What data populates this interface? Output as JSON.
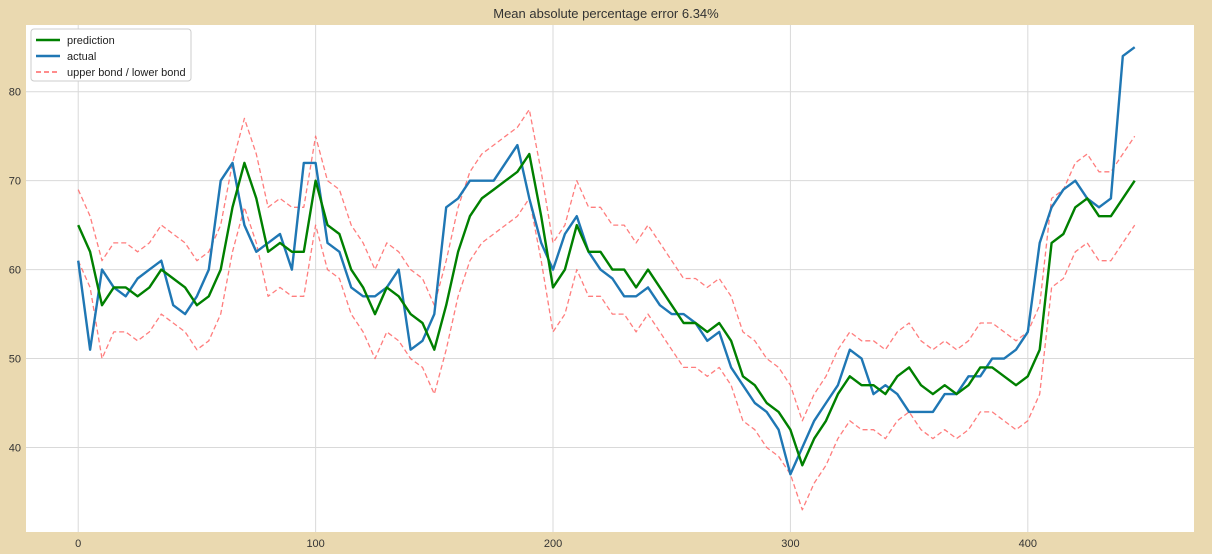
{
  "chart_data": {
    "type": "line",
    "title": "Mean absolute percentage error 6.34%",
    "xlabel": "",
    "ylabel": "",
    "xlim": [
      -22,
      470
    ],
    "ylim": [
      30.5,
      87.5
    ],
    "x_ticks": [
      0,
      100,
      200,
      300,
      400
    ],
    "y_ticks": [
      40,
      50,
      60,
      70,
      80
    ],
    "grid": true,
    "legend_position": "upper-left",
    "colors": {
      "prediction": "#008000",
      "actual": "#1f77b4",
      "bounds": "#ff6666",
      "plot_background": "#ffffff",
      "grid": "#d9d9d9",
      "figure_background": "#ead9b0"
    },
    "series": [
      {
        "name": "prediction",
        "style": "solid",
        "x": [
          0,
          5,
          10,
          15,
          20,
          25,
          30,
          35,
          40,
          45,
          50,
          55,
          60,
          65,
          70,
          75,
          80,
          85,
          90,
          95,
          100,
          105,
          110,
          115,
          120,
          125,
          130,
          135,
          140,
          145,
          150,
          155,
          160,
          165,
          170,
          175,
          180,
          185,
          190,
          195,
          200,
          205,
          210,
          215,
          220,
          225,
          230,
          235,
          240,
          245,
          250,
          255,
          260,
          265,
          270,
          275,
          280,
          285,
          290,
          295,
          300,
          305,
          310,
          315,
          320,
          325,
          330,
          335,
          340,
          345,
          350,
          355,
          360,
          365,
          370,
          375,
          380,
          385,
          390,
          395,
          400,
          405,
          410,
          415,
          420,
          425,
          430,
          435,
          440,
          445
        ],
        "y": [
          65,
          62,
          56,
          58,
          58,
          57,
          58,
          60,
          59,
          58,
          56,
          57,
          60,
          67,
          72,
          68,
          62,
          63,
          62,
          62,
          70,
          65,
          64,
          60,
          58,
          55,
          58,
          57,
          55,
          54,
          51,
          56,
          62,
          66,
          68,
          69,
          70,
          71,
          73,
          66,
          58,
          60,
          65,
          62,
          62,
          60,
          60,
          58,
          60,
          58,
          56,
          54,
          54,
          53,
          54,
          52,
          48,
          47,
          45,
          44,
          42,
          38,
          41,
          43,
          46,
          48,
          47,
          47,
          46,
          48,
          49,
          47,
          46,
          47,
          46,
          47,
          49,
          49,
          48,
          47,
          48,
          51,
          63,
          64,
          67,
          68,
          66,
          66,
          68,
          70
        ]
      },
      {
        "name": "actual",
        "style": "solid",
        "x": [
          0,
          5,
          10,
          15,
          20,
          25,
          30,
          35,
          40,
          45,
          50,
          55,
          60,
          65,
          70,
          75,
          80,
          85,
          90,
          95,
          100,
          105,
          110,
          115,
          120,
          125,
          130,
          135,
          140,
          145,
          150,
          155,
          160,
          165,
          170,
          175,
          180,
          185,
          190,
          195,
          200,
          205,
          210,
          215,
          220,
          225,
          230,
          235,
          240,
          245,
          250,
          255,
          260,
          265,
          270,
          275,
          280,
          285,
          290,
          295,
          300,
          305,
          310,
          315,
          320,
          325,
          330,
          335,
          340,
          345,
          350,
          355,
          360,
          365,
          370,
          375,
          380,
          385,
          390,
          395,
          400,
          405,
          410,
          415,
          420,
          425,
          430,
          435,
          440,
          445
        ],
        "y": [
          61,
          51,
          60,
          58,
          57,
          59,
          60,
          61,
          56,
          55,
          57,
          60,
          70,
          72,
          65,
          62,
          63,
          64,
          60,
          72,
          72,
          63,
          62,
          58,
          57,
          57,
          58,
          60,
          51,
          52,
          55,
          67,
          68,
          70,
          70,
          70,
          72,
          74,
          68,
          63,
          60,
          64,
          66,
          62,
          60,
          59,
          57,
          57,
          58,
          56,
          55,
          55,
          54,
          52,
          53,
          49,
          47,
          45,
          44,
          42,
          37,
          40,
          43,
          45,
          47,
          51,
          50,
          46,
          47,
          46,
          44,
          44,
          44,
          46,
          46,
          48,
          48,
          50,
          50,
          51,
          53,
          63,
          67,
          69,
          70,
          68,
          67,
          68,
          84,
          85
        ]
      },
      {
        "name": "upper bond / lower bond",
        "style": "dashed",
        "x": [
          0,
          5,
          10,
          15,
          20,
          25,
          30,
          35,
          40,
          45,
          50,
          55,
          60,
          65,
          70,
          75,
          80,
          85,
          90,
          95,
          100,
          105,
          110,
          115,
          120,
          125,
          130,
          135,
          140,
          145,
          150,
          155,
          160,
          165,
          170,
          175,
          180,
          185,
          190,
          195,
          200,
          205,
          210,
          215,
          220,
          225,
          230,
          235,
          240,
          245,
          250,
          255,
          260,
          265,
          270,
          275,
          280,
          285,
          290,
          295,
          300,
          305,
          310,
          315,
          320,
          325,
          330,
          335,
          340,
          345,
          350,
          355,
          360,
          365,
          370,
          375,
          380,
          385,
          390,
          395,
          400,
          405,
          410,
          415,
          420,
          425,
          430,
          435,
          440,
          445
        ],
        "y": [
          69,
          66,
          61,
          63,
          63,
          62,
          63,
          65,
          64,
          63,
          61,
          62,
          65,
          72,
          77,
          73,
          67,
          68,
          67,
          67,
          75,
          70,
          69,
          65,
          63,
          60,
          63,
          62,
          60,
          59,
          56,
          61,
          67,
          71,
          73,
          74,
          75,
          76,
          78,
          71,
          63,
          65,
          70,
          67,
          67,
          65,
          65,
          63,
          65,
          63,
          61,
          59,
          59,
          58,
          59,
          57,
          53,
          52,
          50,
          49,
          47,
          43,
          46,
          48,
          51,
          53,
          52,
          52,
          51,
          53,
          54,
          52,
          51,
          52,
          51,
          52,
          54,
          54,
          53,
          52,
          53,
          56,
          68,
          69,
          72,
          73,
          71,
          71,
          73,
          75
        ]
      },
      {
        "style": "dashed",
        "x": [
          0,
          5,
          10,
          15,
          20,
          25,
          30,
          35,
          40,
          45,
          50,
          55,
          60,
          65,
          70,
          75,
          80,
          85,
          90,
          95,
          100,
          105,
          110,
          115,
          120,
          125,
          130,
          135,
          140,
          145,
          150,
          155,
          160,
          165,
          170,
          175,
          180,
          185,
          190,
          195,
          200,
          205,
          210,
          215,
          220,
          225,
          230,
          235,
          240,
          245,
          250,
          255,
          260,
          265,
          270,
          275,
          280,
          285,
          290,
          295,
          300,
          305,
          310,
          315,
          320,
          325,
          330,
          335,
          340,
          345,
          350,
          355,
          360,
          365,
          370,
          375,
          380,
          385,
          390,
          395,
          400,
          405,
          410,
          415,
          420,
          425,
          430,
          435,
          440,
          445
        ],
        "y": [
          61,
          58,
          50,
          53,
          53,
          52,
          53,
          55,
          54,
          53,
          51,
          52,
          55,
          62,
          67,
          63,
          57,
          58,
          57,
          57,
          65,
          60,
          59,
          55,
          53,
          50,
          53,
          52,
          50,
          49,
          46,
          51,
          57,
          61,
          63,
          64,
          65,
          66,
          68,
          61,
          53,
          55,
          60,
          57,
          57,
          55,
          55,
          53,
          55,
          53,
          51,
          49,
          49,
          48,
          49,
          47,
          43,
          42,
          40,
          39,
          37,
          33,
          36,
          38,
          41,
          43,
          42,
          42,
          41,
          43,
          44,
          42,
          41,
          42,
          41,
          42,
          44,
          44,
          43,
          42,
          43,
          46,
          58,
          59,
          62,
          63,
          61,
          61,
          63,
          65
        ]
      }
    ]
  }
}
